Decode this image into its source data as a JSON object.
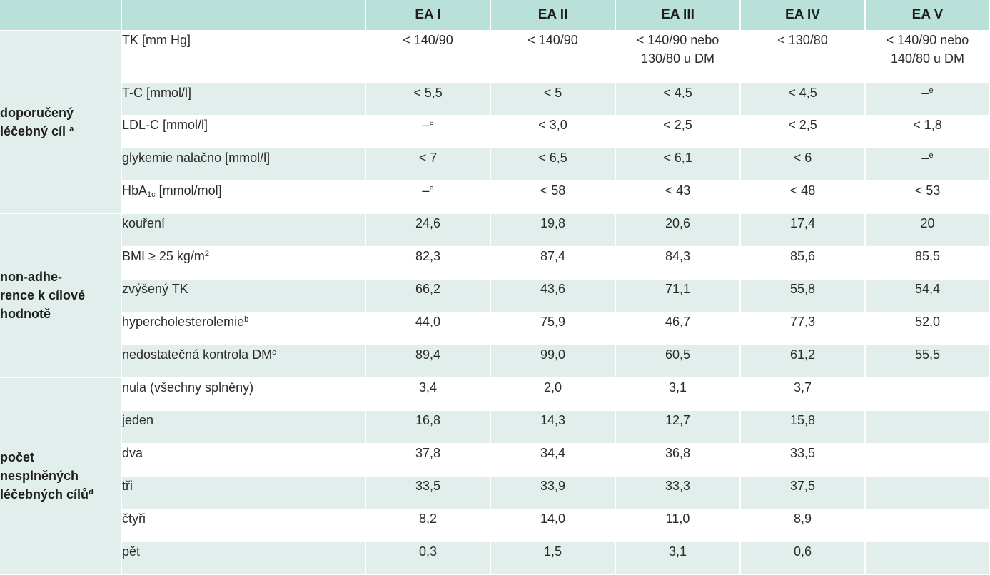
{
  "columns": [
    "EA I",
    "EA II",
    "EA III",
    "EA IV",
    "EA V"
  ],
  "groups": [
    {
      "line1": "doporučený",
      "line2": "léčebný cíl",
      "line3": "",
      "line4": "",
      "sup": "a"
    },
    {
      "line1": "non-adhe-",
      "line2": "rence k cílové",
      "line3": "hodnotě",
      "line4": "",
      "sup": ""
    },
    {
      "line1": "počet",
      "line2": "nesplněných",
      "line3": "léčebných cílů",
      "line4": "",
      "sup": "d"
    }
  ],
  "rows": [
    {
      "label": "TK [mm Hg]",
      "label_sup": "",
      "values": [
        "< 140/90",
        "< 140/90",
        "< 140/90 nebo",
        "< 130/80",
        "< 140/90 nebo"
      ],
      "values2": [
        "",
        "",
        "130/80 u DM",
        "",
        "140/80 u DM"
      ]
    },
    {
      "label": "T-C [mmol/l]",
      "label_sup": "",
      "values": [
        "< 5,5",
        "< 5",
        "< 4,5",
        "< 4,5",
        "–"
      ],
      "sups": [
        "",
        "",
        "",
        "",
        "e"
      ]
    },
    {
      "label": "LDL-C [mmol/l]",
      "label_sup": "",
      "values": [
        "–",
        "< 3,0",
        "< 2,5",
        "< 2,5",
        "< 1,8"
      ],
      "sups": [
        "e",
        "",
        "",
        "",
        ""
      ]
    },
    {
      "label": "glykemie nalačno [mmol/l]",
      "label_sup": "",
      "values": [
        "< 7",
        "< 6,5",
        "< 6,1",
        "< 6",
        "–"
      ],
      "sups": [
        "",
        "",
        "",
        "",
        "e"
      ]
    },
    {
      "label_pre": "HbA",
      "label_sub": "1c",
      "label_post": " [mmol/mol]",
      "values": [
        "–",
        "< 58",
        "< 43",
        "< 48",
        "< 53"
      ],
      "sups": [
        "e",
        "",
        "",
        "",
        ""
      ]
    },
    {
      "label": "kouření",
      "label_sup": "",
      "values": [
        "24,6",
        "19,8",
        "20,6",
        "17,4",
        "20"
      ]
    },
    {
      "label": "BMI ≥ 25 kg/m",
      "label_sup": "2",
      "values": [
        "82,3",
        "87,4",
        "84,3",
        "85,6",
        "85,5"
      ]
    },
    {
      "label": "zvýšený TK",
      "label_sup": "",
      "values": [
        "66,2",
        "43,6",
        "71,1",
        "55,8",
        "54,4"
      ]
    },
    {
      "label": "hypercholesterolemie",
      "label_sup": "b",
      "values": [
        "44,0",
        "75,9",
        "46,7",
        "77,3",
        "52,0"
      ]
    },
    {
      "label": "nedostatečná kontrola DM",
      "label_sup": "c",
      "values": [
        "89,4",
        "99,0",
        "60,5",
        "61,2",
        "55,5"
      ]
    },
    {
      "label": "nula (všechny splněny)",
      "label_sup": "",
      "values": [
        "3,4",
        "2,0",
        "3,1",
        "3,7",
        ""
      ]
    },
    {
      "label": "jeden",
      "label_sup": "",
      "values": [
        "16,8",
        "14,3",
        "12,7",
        "15,8",
        ""
      ]
    },
    {
      "label": "dva",
      "label_sup": "",
      "values": [
        "37,8",
        "34,4",
        "36,8",
        "33,5",
        ""
      ]
    },
    {
      "label": "tři",
      "label_sup": "",
      "values": [
        "33,5",
        "33,9",
        "33,3",
        "37,5",
        ""
      ]
    },
    {
      "label": "čtyři",
      "label_sup": "",
      "values": [
        "8,2",
        "14,0",
        "11,0",
        "8,9",
        ""
      ]
    },
    {
      "label": "pět",
      "label_sup": "",
      "values": [
        "0,3",
        "1,5",
        "3,1",
        "0,6",
        ""
      ]
    }
  ]
}
